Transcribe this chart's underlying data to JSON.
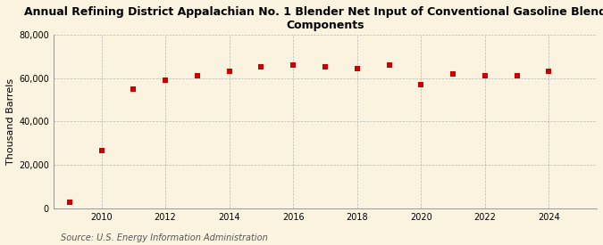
{
  "title_line1": "Annual Refining District Appalachian No. 1 Blender Net Input of Conventional Gasoline Blending",
  "title_line2": "Components",
  "ylabel": "Thousand Barrels",
  "source": "Source: U.S. Energy Information Administration",
  "background_color": "#faf3e0",
  "plot_background_color": "#faf3e0",
  "marker_color": "#cc0000",
  "marker": "s",
  "marker_size": 4,
  "years": [
    2009,
    2010,
    2011,
    2012,
    2013,
    2014,
    2015,
    2016,
    2017,
    2018,
    2019,
    2020,
    2021,
    2022,
    2023,
    2024
  ],
  "values": [
    2800,
    26500,
    55000,
    59000,
    61000,
    63000,
    65000,
    66000,
    65000,
    64500,
    66000,
    57000,
    62000,
    61000,
    61000,
    63000
  ],
  "ylim": [
    0,
    80000
  ],
  "yticks": [
    0,
    20000,
    40000,
    60000,
    80000
  ],
  "xlim": [
    2008.5,
    2025.5
  ],
  "xticks": [
    2010,
    2012,
    2014,
    2016,
    2018,
    2020,
    2022,
    2024
  ],
  "title_fontsize": 9,
  "ylabel_fontsize": 8,
  "tick_fontsize": 7,
  "source_fontsize": 7
}
